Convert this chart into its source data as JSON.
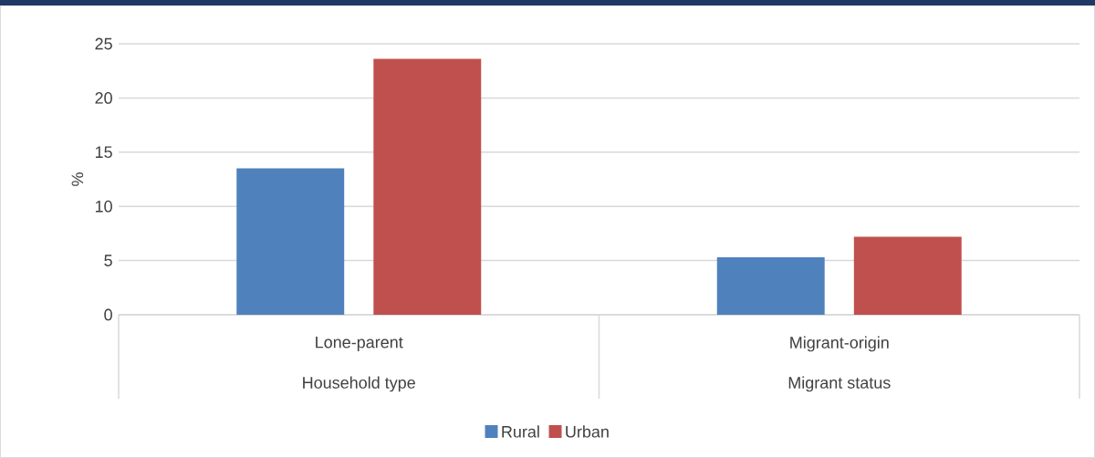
{
  "chart_data": {
    "type": "bar",
    "ylabel": "%",
    "categories": [
      "Lone-parent",
      "Migrant-origin"
    ],
    "annotations": [
      "Household type",
      "Migrant status"
    ],
    "series": [
      {
        "name": "Rural",
        "color": "#4f81bd",
        "values": [
          13.5,
          5.3
        ]
      },
      {
        "name": "Urban",
        "color": "#c0504d",
        "values": [
          23.6,
          7.2
        ]
      }
    ],
    "ylim": [
      0,
      25
    ],
    "yticks": [
      0,
      5,
      10,
      15,
      20,
      25
    ],
    "grid": "y",
    "legend": "bottom"
  }
}
